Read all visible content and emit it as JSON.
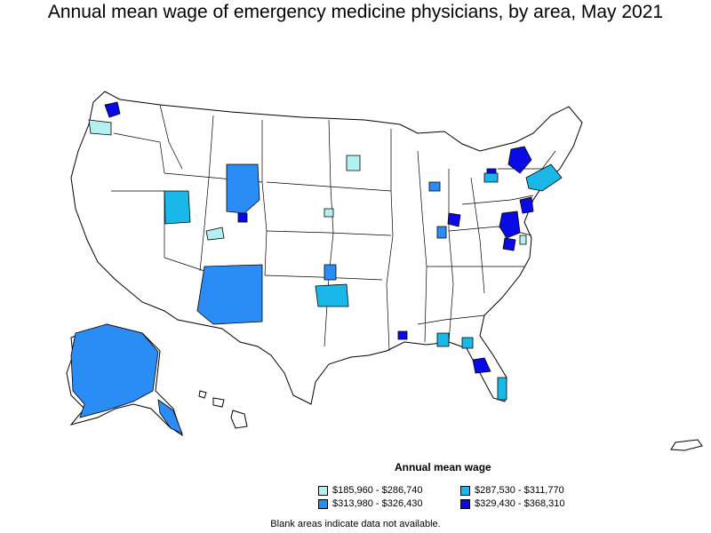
{
  "title": "Annual mean wage of emergency medicine physicians, by area, May 2021",
  "legend": {
    "title": "Annual mean wage",
    "items": [
      {
        "label": "$185,960 - $286,740",
        "color": "#b3f0f0"
      },
      {
        "label": "$287,530 - $311,770",
        "color": "#1ab8e8"
      },
      {
        "label": "$313,980 - $326,430",
        "color": "#2a8cf5"
      },
      {
        "label": "$329,430 - $368,310",
        "color": "#0a0ae6"
      }
    ]
  },
  "footnote": "Blank areas indicate data not available.",
  "colors": {
    "outline": "#000000",
    "blank": "#ffffff"
  }
}
